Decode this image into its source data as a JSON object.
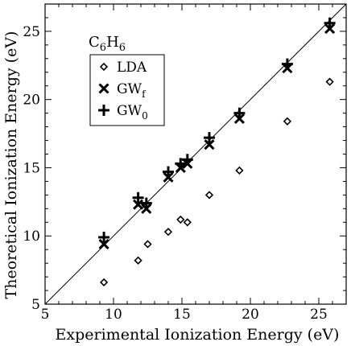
{
  "chart_data": {
    "type": "scatter",
    "title": "",
    "annotation": {
      "main": "C",
      "sub1": "6",
      "mid": "H",
      "sub2": "6"
    },
    "xlabel": "Experimental Ionization Energy (eV)",
    "ylabel": "Theoretical Ionization Energy (eV)",
    "xlim": [
      5,
      27
    ],
    "ylim": [
      5,
      27
    ],
    "xticks": [
      5,
      10,
      15,
      20,
      25
    ],
    "yticks": [
      5,
      10,
      15,
      20,
      25
    ],
    "grid": false,
    "legend_position": "upper-left",
    "diagonal": {
      "from": [
        5,
        5
      ],
      "to": [
        27,
        27
      ]
    },
    "series": [
      {
        "name": "LDA",
        "legend_main": "LDA",
        "legend_sub": "",
        "marker": "diamond",
        "x": [
          9.3,
          11.8,
          12.5,
          14.0,
          14.9,
          15.4,
          17.0,
          19.2,
          22.7,
          25.8
        ],
        "y": [
          6.6,
          8.2,
          9.4,
          10.3,
          11.2,
          11.0,
          13.0,
          14.8,
          18.4,
          21.3
        ]
      },
      {
        "name": "GWf",
        "legend_main": "GW",
        "legend_sub": "f",
        "marker": "x",
        "x": [
          9.3,
          11.8,
          12.4,
          14.0,
          14.9,
          15.4,
          17.0,
          19.2,
          22.7,
          25.8
        ],
        "y": [
          9.4,
          12.3,
          12.0,
          14.3,
          15.0,
          15.3,
          16.7,
          18.6,
          22.3,
          25.2
        ]
      },
      {
        "name": "GW0",
        "legend_main": "GW",
        "legend_sub": "0",
        "marker": "plus",
        "x": [
          9.3,
          11.8,
          12.4,
          14.0,
          14.9,
          15.4,
          17.0,
          19.2,
          22.7,
          25.8
        ],
        "y": [
          9.9,
          12.8,
          12.4,
          14.7,
          15.3,
          15.6,
          17.2,
          19.0,
          22.6,
          25.6
        ]
      }
    ]
  }
}
